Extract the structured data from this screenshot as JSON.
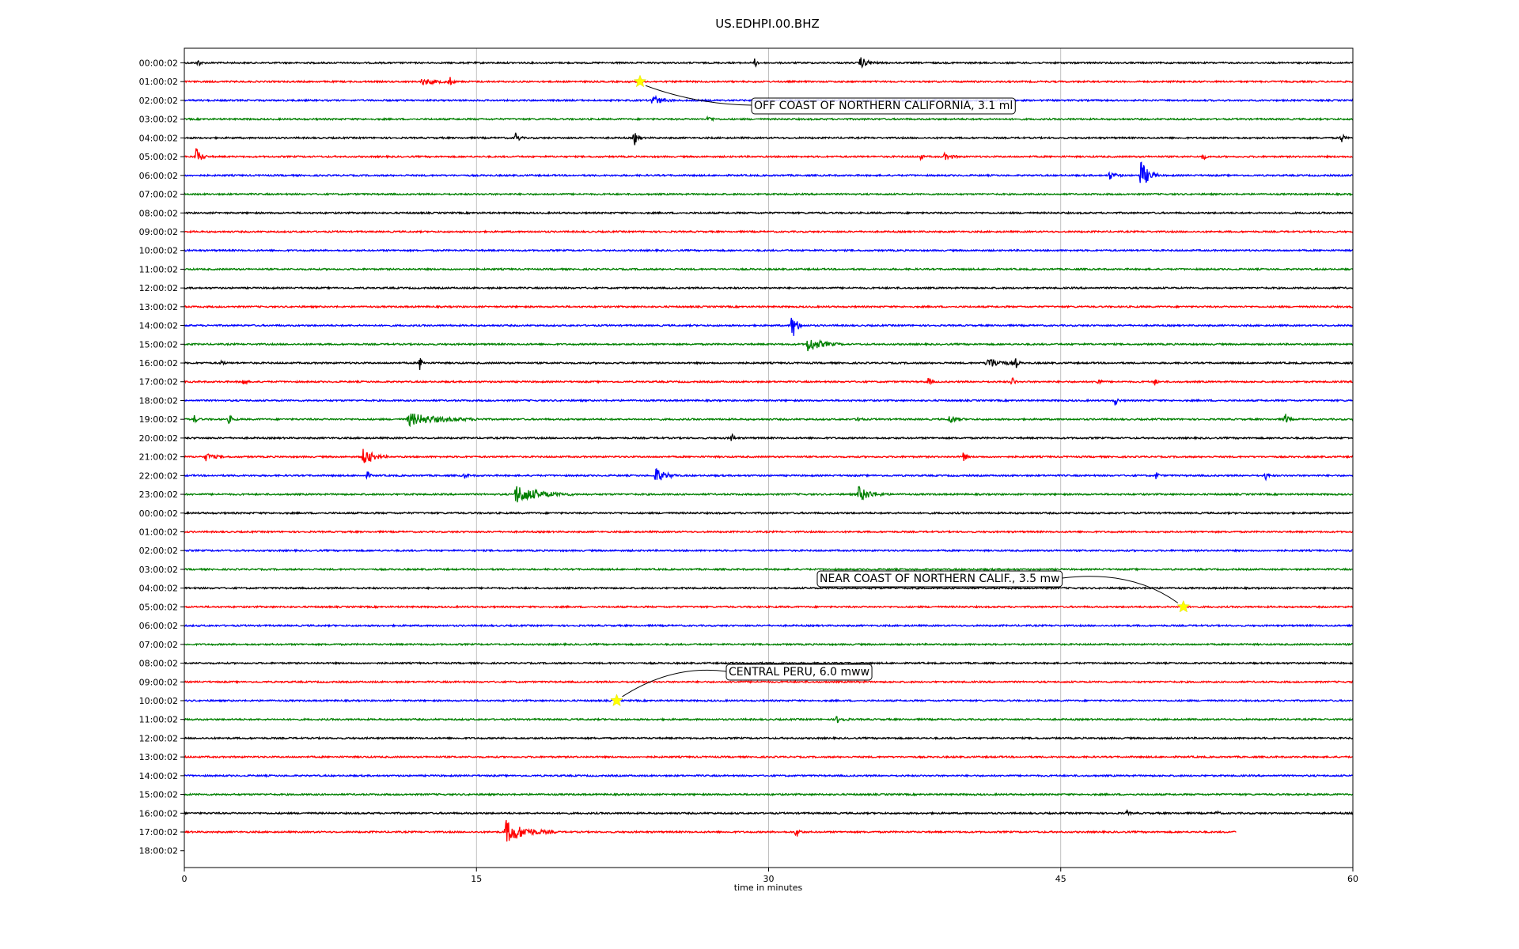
{
  "chart_data": {
    "type": "line",
    "title": "US.EDHPI.00.BHZ",
    "xlabel": "time in minutes",
    "ylabel": "",
    "xlim": [
      0,
      60
    ],
    "xticks": [
      0,
      15,
      30,
      45,
      60
    ],
    "xtick_labels": [
      "0",
      "15",
      "30",
      "45",
      "60"
    ],
    "grid": "vertical",
    "trace_colors": [
      "#000000",
      "#ff0000",
      "#0000ff",
      "#008000"
    ],
    "last_trace_end_minute": 54,
    "row_labels": [
      "00:00:02",
      "01:00:02",
      "02:00:02",
      "03:00:02",
      "04:00:02",
      "05:00:02",
      "06:00:02",
      "07:00:02",
      "08:00:02",
      "09:00:02",
      "10:00:02",
      "11:00:02",
      "12:00:02",
      "13:00:02",
      "14:00:02",
      "15:00:02",
      "16:00:02",
      "17:00:02",
      "18:00:02",
      "19:00:02",
      "20:00:02",
      "21:00:02",
      "22:00:02",
      "23:00:02",
      "00:00:02",
      "01:00:02",
      "02:00:02",
      "03:00:02",
      "04:00:02",
      "05:00:02",
      "06:00:02",
      "07:00:02",
      "08:00:02",
      "09:00:02",
      "10:00:02",
      "11:00:02",
      "12:00:02",
      "13:00:02",
      "14:00:02",
      "15:00:02",
      "16:00:02",
      "17:00:02",
      "18:00:02"
    ],
    "events": [
      {
        "row": 0,
        "minute": 0.7,
        "amp": 0.6,
        "dur": 0.3
      },
      {
        "row": 0,
        "minute": 29.3,
        "amp": 0.6,
        "dur": 0.3
      },
      {
        "row": 0,
        "minute": 34.7,
        "amp": 0.7,
        "dur": 1.0
      },
      {
        "row": 1,
        "minute": 12.2,
        "amp": 0.4,
        "dur": 1.8
      },
      {
        "row": 1,
        "minute": 13.6,
        "amp": 0.8,
        "dur": 0.3
      },
      {
        "row": 2,
        "minute": 24.0,
        "amp": 0.7,
        "dur": 1.2
      },
      {
        "row": 2,
        "minute": 37.6,
        "amp": 0.5,
        "dur": 0.4
      },
      {
        "row": 3,
        "minute": 26.9,
        "amp": 0.5,
        "dur": 0.4
      },
      {
        "row": 4,
        "minute": 17.0,
        "amp": 0.8,
        "dur": 0.4
      },
      {
        "row": 4,
        "minute": 23.1,
        "amp": 1.0,
        "dur": 0.5
      },
      {
        "row": 4,
        "minute": 59.4,
        "amp": 0.8,
        "dur": 0.3
      },
      {
        "row": 5,
        "minute": 0.6,
        "amp": 1.2,
        "dur": 0.6
      },
      {
        "row": 5,
        "minute": 37.8,
        "amp": 0.4,
        "dur": 0.3
      },
      {
        "row": 5,
        "minute": 39.0,
        "amp": 0.4,
        "dur": 1.0
      },
      {
        "row": 5,
        "minute": 52.3,
        "amp": 0.5,
        "dur": 0.3
      },
      {
        "row": 6,
        "minute": 47.5,
        "amp": 0.5,
        "dur": 0.8
      },
      {
        "row": 6,
        "minute": 49.1,
        "amp": 2.0,
        "dur": 1.0
      },
      {
        "row": 14,
        "minute": 31.2,
        "amp": 2.0,
        "dur": 0.6
      },
      {
        "row": 15,
        "minute": 32.0,
        "amp": 1.0,
        "dur": 1.8
      },
      {
        "row": 16,
        "minute": 1.9,
        "amp": 0.4,
        "dur": 0.3
      },
      {
        "row": 16,
        "minute": 12.1,
        "amp": 1.0,
        "dur": 0.3
      },
      {
        "row": 16,
        "minute": 41.2,
        "amp": 0.8,
        "dur": 1.6
      },
      {
        "row": 16,
        "minute": 42.7,
        "amp": 0.6,
        "dur": 0.3
      },
      {
        "row": 17,
        "minute": 3.0,
        "amp": 0.8,
        "dur": 0.3
      },
      {
        "row": 17,
        "minute": 38.2,
        "amp": 0.6,
        "dur": 0.3
      },
      {
        "row": 17,
        "minute": 42.5,
        "amp": 0.7,
        "dur": 0.3
      },
      {
        "row": 17,
        "minute": 46.9,
        "amp": 0.6,
        "dur": 0.3
      },
      {
        "row": 17,
        "minute": 49.8,
        "amp": 0.6,
        "dur": 0.3
      },
      {
        "row": 18,
        "minute": 47.8,
        "amp": 0.7,
        "dur": 0.3
      },
      {
        "row": 19,
        "minute": 0.5,
        "amp": 0.5,
        "dur": 0.4
      },
      {
        "row": 19,
        "minute": 2.3,
        "amp": 0.6,
        "dur": 0.4
      },
      {
        "row": 19,
        "minute": 11.5,
        "amp": 0.8,
        "dur": 4.0
      },
      {
        "row": 19,
        "minute": 34.6,
        "amp": 0.6,
        "dur": 0.3
      },
      {
        "row": 19,
        "minute": 39.3,
        "amp": 0.6,
        "dur": 0.8
      },
      {
        "row": 19,
        "minute": 56.5,
        "amp": 0.9,
        "dur": 0.4
      },
      {
        "row": 20,
        "minute": 28.1,
        "amp": 0.6,
        "dur": 0.3
      },
      {
        "row": 21,
        "minute": 1.1,
        "amp": 0.5,
        "dur": 1.0
      },
      {
        "row": 21,
        "minute": 9.2,
        "amp": 1.2,
        "dur": 1.2
      },
      {
        "row": 21,
        "minute": 40.0,
        "amp": 0.8,
        "dur": 0.3
      },
      {
        "row": 22,
        "minute": 9.4,
        "amp": 0.5,
        "dur": 0.3
      },
      {
        "row": 22,
        "minute": 14.4,
        "amp": 0.4,
        "dur": 0.3
      },
      {
        "row": 22,
        "minute": 24.2,
        "amp": 1.0,
        "dur": 1.2
      },
      {
        "row": 22,
        "minute": 49.9,
        "amp": 0.5,
        "dur": 0.3
      },
      {
        "row": 22,
        "minute": 55.5,
        "amp": 0.6,
        "dur": 0.3
      },
      {
        "row": 23,
        "minute": 17.0,
        "amp": 1.2,
        "dur": 3.0
      },
      {
        "row": 23,
        "minute": 34.6,
        "amp": 1.0,
        "dur": 1.6
      },
      {
        "row": 35,
        "minute": 33.5,
        "amp": 0.4,
        "dur": 0.8
      },
      {
        "row": 40,
        "minute": 48.4,
        "amp": 0.3,
        "dur": 0.3
      },
      {
        "row": 40,
        "minute": 53.0,
        "amp": 0.3,
        "dur": 0.3
      },
      {
        "row": 41,
        "minute": 16.5,
        "amp": 1.5,
        "dur": 2.6
      },
      {
        "row": 41,
        "minute": 31.4,
        "amp": 0.8,
        "dur": 0.4
      }
    ],
    "annotations": [
      {
        "text": "OFF COAST OF NORTHERN CALIFORNIA, 3.1 ml",
        "row": 1,
        "minute": 23.4
      },
      {
        "text": "NEAR COAST OF NORTHERN CALIF., 3.5 mw",
        "row": 29,
        "minute": 51.3
      },
      {
        "text": "CENTRAL PERU, 6.0 mww",
        "row": 34,
        "minute": 22.2
      }
    ]
  }
}
